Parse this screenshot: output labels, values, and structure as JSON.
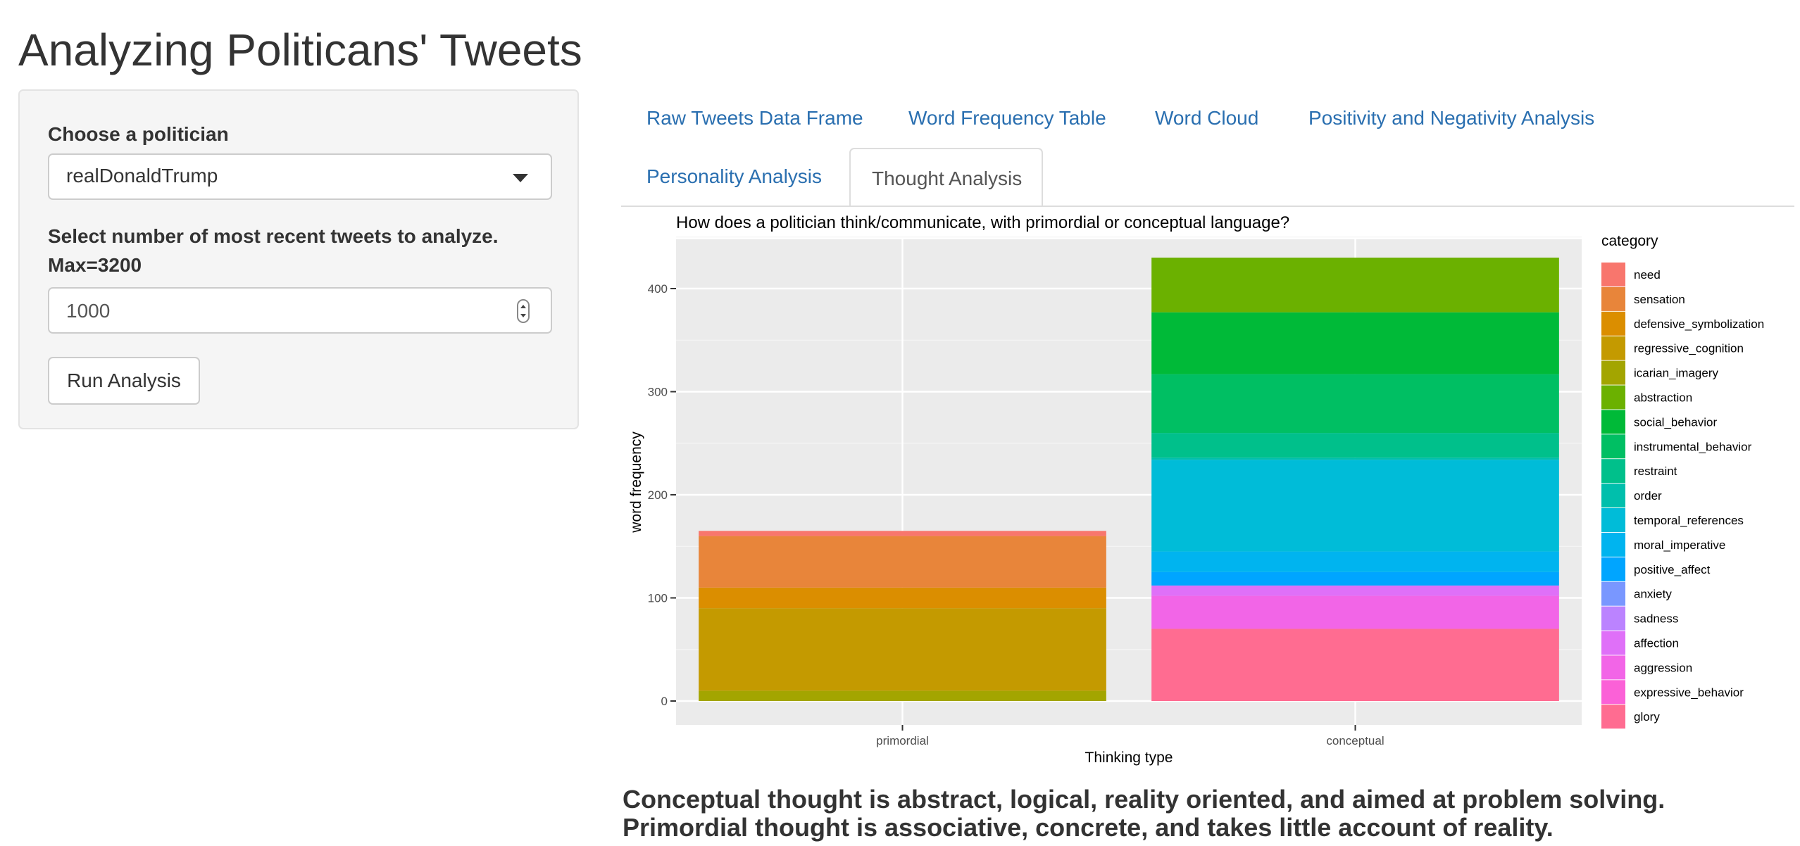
{
  "page": {
    "title": "Analyzing Politicans' Tweets"
  },
  "sidebar": {
    "politician_label": "Choose a politician",
    "politician_value": "realDonaldTrump",
    "tweets_label_line1": "Select number of most recent tweets to analyze.",
    "tweets_label_line2": "Max=3200",
    "tweets_value": "1000",
    "run_button": "Run Analysis"
  },
  "tabs": [
    {
      "label": "Raw Tweets Data Frame",
      "active": false
    },
    {
      "label": "Word Frequency Table",
      "active": false
    },
    {
      "label": "Word Cloud",
      "active": false
    },
    {
      "label": "Positivity and Negativity Analysis",
      "active": false
    },
    {
      "label": "Personality Analysis",
      "active": false
    },
    {
      "label": "Thought Analysis",
      "active": true
    }
  ],
  "chart_data": {
    "type": "bar",
    "stacked": true,
    "title": "How does a politician think/communicate, with primordial or conceptual language?",
    "xlabel": "Thinking type",
    "ylabel": "word frequency",
    "categories": [
      "primordial",
      "conceptual"
    ],
    "ylim": [
      0,
      430
    ],
    "yticks": [
      0,
      100,
      200,
      300,
      400
    ],
    "grid": true,
    "legend": {
      "title": "category",
      "position": "right"
    },
    "series": [
      {
        "name": "need",
        "color": "#F8766D",
        "values": [
          5,
          0
        ]
      },
      {
        "name": "sensation",
        "color": "#E8853A",
        "values": [
          50,
          0
        ]
      },
      {
        "name": "defensive_symbolization",
        "color": "#DB8E00",
        "values": [
          20,
          0
        ]
      },
      {
        "name": "regressive_cognition",
        "color": "#C49A00",
        "values": [
          80,
          0
        ]
      },
      {
        "name": "icarian_imagery",
        "color": "#A3A500",
        "values": [
          10,
          0
        ]
      },
      {
        "name": "abstraction",
        "color": "#6BB100",
        "values": [
          0,
          53
        ]
      },
      {
        "name": "social_behavior",
        "color": "#00BA38",
        "values": [
          0,
          60
        ]
      },
      {
        "name": "instrumental_behavior",
        "color": "#00BF63",
        "values": [
          0,
          57
        ]
      },
      {
        "name": "restraint",
        "color": "#00C08B",
        "values": [
          0,
          24
        ]
      },
      {
        "name": "order",
        "color": "#00BFAC",
        "values": [
          0,
          2
        ]
      },
      {
        "name": "temporal_references",
        "color": "#00BCD8",
        "values": [
          0,
          89
        ]
      },
      {
        "name": "moral_imperative",
        "color": "#00B4EF",
        "values": [
          0,
          20
        ]
      },
      {
        "name": "positive_affect",
        "color": "#00A5FF",
        "values": [
          0,
          13
        ]
      },
      {
        "name": "anxiety",
        "color": "#7997FF",
        "values": [
          0,
          0
        ]
      },
      {
        "name": "sadness",
        "color": "#BB83FF",
        "values": [
          0,
          0
        ]
      },
      {
        "name": "affection",
        "color": "#DF70F8",
        "values": [
          0,
          10
        ]
      },
      {
        "name": "aggression",
        "color": "#F265E7",
        "values": [
          0,
          32
        ]
      },
      {
        "name": "expressive_behavior",
        "color": "#FB61D7",
        "values": [
          0,
          0
        ]
      },
      {
        "name": "glory",
        "color": "#FF6C91",
        "values": [
          0,
          70
        ]
      }
    ]
  },
  "explanation": "Conceptual thought is abstract, logical, reality oriented, and aimed at problem solving. Primordial thought is associative, concrete, and takes little account of reality."
}
